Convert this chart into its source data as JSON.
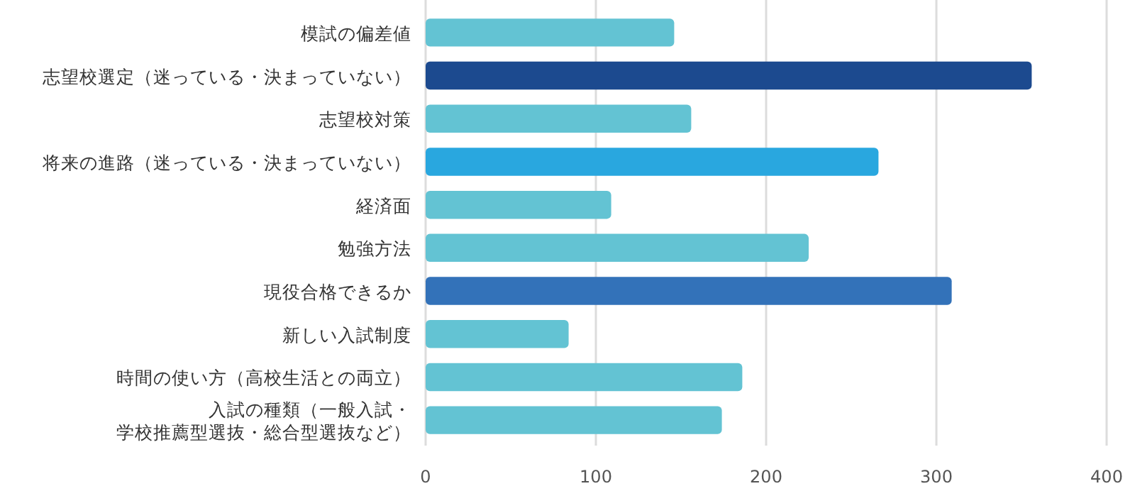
{
  "chart_data": {
    "type": "bar",
    "orientation": "horizontal",
    "categories": [
      "模試の偏差値",
      "志望校選定（迷っている・決まっていない）",
      "志望校対策",
      "将来の進路（迷っている・決まっていない）",
      "経済面",
      "勉強方法",
      "現役合格できるか",
      "新しい入試制度",
      "時間の使い方（高校生活との両立）",
      "入試の種類（一般入試・学校推薦型選抜・総合型選抜など）"
    ],
    "values": [
      146,
      356,
      156,
      266,
      109,
      225,
      309,
      84,
      186,
      174
    ],
    "colors": [
      "#63c3d3",
      "#1c4a8f",
      "#63c3d3",
      "#29a7df",
      "#63c3d3",
      "#63c3d3",
      "#3372b9",
      "#63c3d3",
      "#63c3d3",
      "#63c3d3"
    ],
    "xlim": [
      0,
      400
    ],
    "xticks": [
      0,
      100,
      200,
      300,
      400
    ],
    "grid": "x"
  }
}
